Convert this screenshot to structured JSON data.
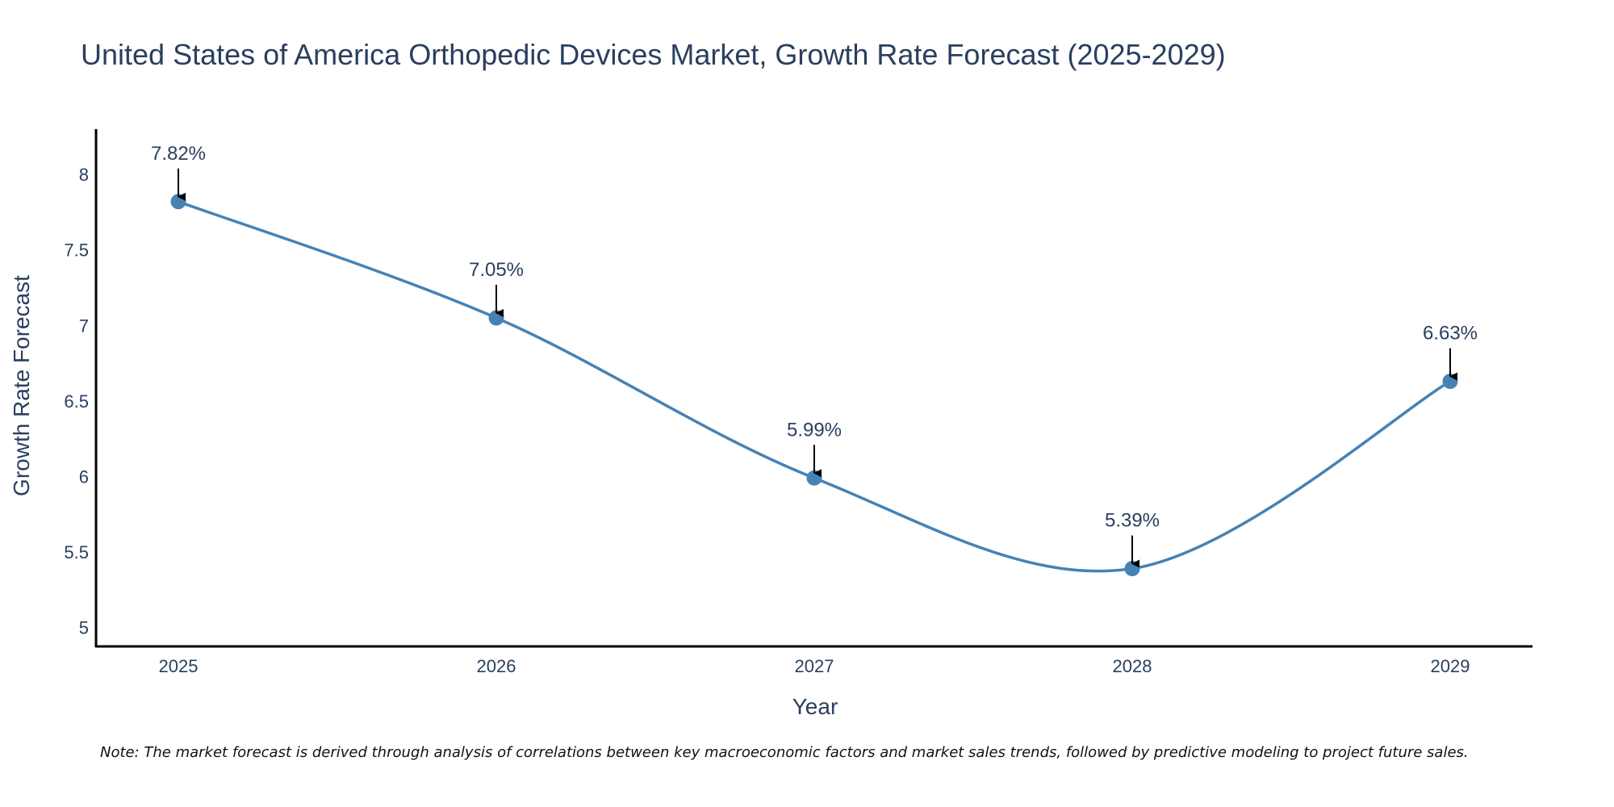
{
  "chart_data": {
    "type": "line",
    "title": "United States of America Orthopedic Devices Market, Growth Rate Forecast (2025-2029)",
    "xlabel": "Year",
    "ylabel": "Growth Rate Forecast",
    "categories": [
      "2025",
      "2026",
      "2027",
      "2028",
      "2029"
    ],
    "series": [
      {
        "name": "Growth Rate Forecast",
        "values": [
          7.82,
          7.05,
          5.99,
          5.39,
          6.63
        ],
        "color": "#4682b4"
      }
    ],
    "data_labels": [
      "7.82%",
      "7.05%",
      "5.99%",
      "5.39%",
      "6.63%"
    ],
    "ylim": [
      4.88,
      8.3
    ],
    "yticks": [
      5,
      5.5,
      6,
      6.5,
      7,
      7.5,
      8
    ],
    "ytick_labels": [
      "5",
      "5.5",
      "6",
      "6.5",
      "7",
      "7.5",
      "8"
    ],
    "grid": false,
    "annotation_arrow_color": "#000000",
    "axis_color": "#000000"
  },
  "footer": {
    "note": "Note: The market forecast is derived through analysis of correlations between key macroeconomic factors and market sales trends, followed by predictive modeling to project future sales."
  }
}
